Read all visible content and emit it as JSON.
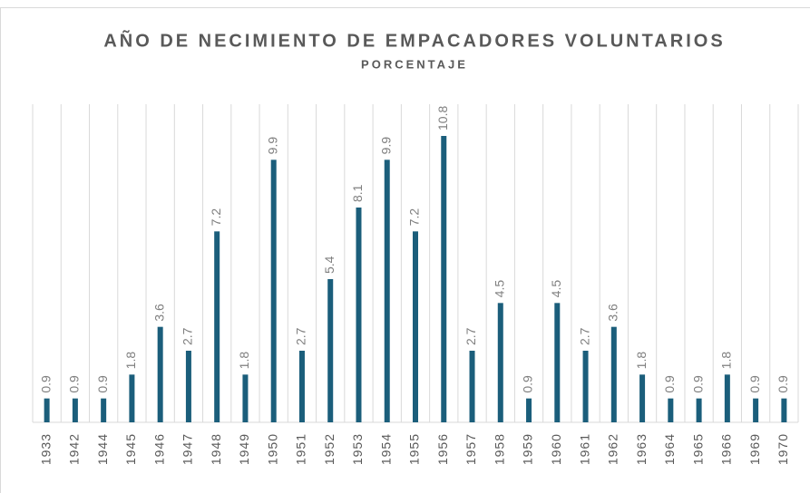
{
  "chart_data": {
    "type": "bar",
    "title": "AÑO DE NECIMIENTO DE EMPACADORES VOLUNTARIOS",
    "subtitle": "PORCENTAJE",
    "categories": [
      "1933",
      "1942",
      "1944",
      "1945",
      "1946",
      "1947",
      "1948",
      "1949",
      "1950",
      "1951",
      "1952",
      "1953",
      "1954",
      "1955",
      "1956",
      "1957",
      "1958",
      "1959",
      "1960",
      "1961",
      "1962",
      "1963",
      "1964",
      "1965",
      "1966",
      "1969",
      "1970"
    ],
    "values": [
      0.9,
      0.9,
      0.9,
      1.8,
      3.6,
      2.7,
      7.2,
      1.8,
      9.9,
      2.7,
      5.4,
      8.1,
      9.9,
      7.2,
      10.8,
      2.7,
      4.5,
      0.9,
      4.5,
      2.7,
      3.6,
      1.8,
      0.9,
      0.9,
      1.8,
      0.9,
      0.9
    ],
    "color": "#1b5e7b",
    "grid": true
  }
}
